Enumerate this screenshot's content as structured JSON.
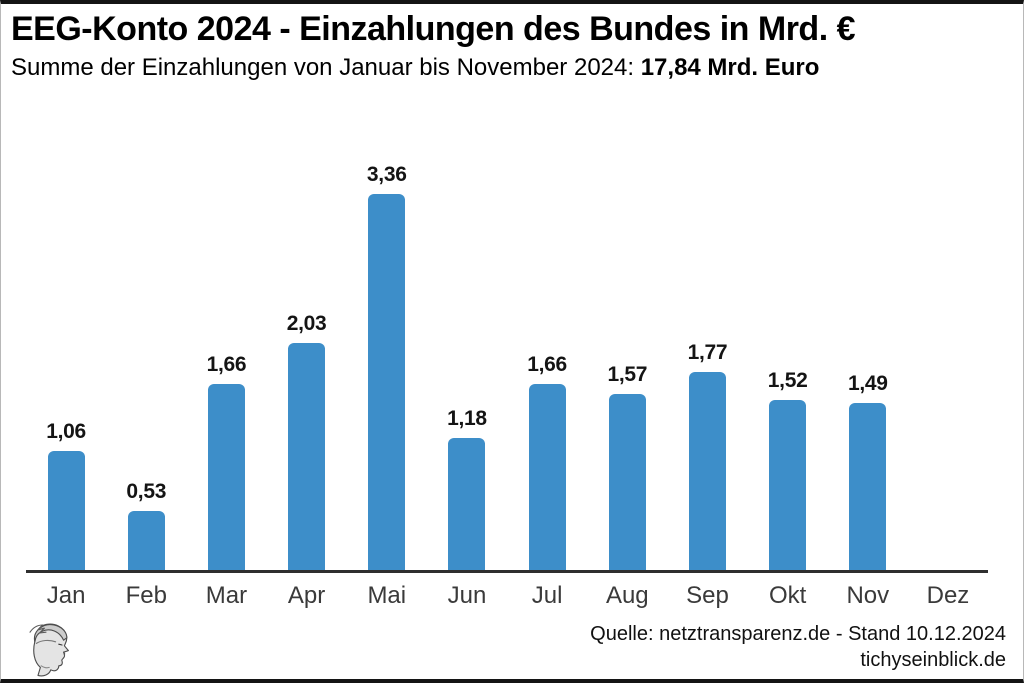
{
  "header": {
    "title": "EEG-Konto 2024 - Einzahlungen des Bundes in Mrd. €",
    "subtitle_prefix": "Summe der Einzahlungen von Januar bis November 2024: ",
    "subtitle_bold": "17,84 Mrd. Euro"
  },
  "chart_data": {
    "type": "bar",
    "title": "EEG-Konto 2024 - Einzahlungen des Bundes in Mrd. €",
    "subtitle": "Summe der Einzahlungen von Januar bis November 2024: 17,84 Mrd. Euro",
    "categories": [
      "Jan",
      "Feb",
      "Mar",
      "Apr",
      "Mai",
      "Jun",
      "Jul",
      "Aug",
      "Sep",
      "Okt",
      "Nov",
      "Dez"
    ],
    "values": [
      1.06,
      0.53,
      1.66,
      2.03,
      3.36,
      1.18,
      1.66,
      1.57,
      1.77,
      1.52,
      1.49,
      null
    ],
    "value_labels": [
      "1,06",
      "0,53",
      "1,66",
      "2,03",
      "3,36",
      "1,18",
      "1,66",
      "1,57",
      "1,77",
      "1,52",
      "1,49",
      ""
    ],
    "unit": "Mrd. €",
    "ylim": [
      0,
      3.73
    ],
    "grid": false,
    "legend": false,
    "bar_color": "#3d8ec9",
    "axis_color": "#2f2f2f",
    "label_color": "#141414"
  },
  "footer": {
    "source_line": "Quelle: netztransparenz.de - Stand 10.12.2024",
    "site_line": "tichyseinblick.de"
  },
  "logo": {
    "name": "hermes-head-logo"
  }
}
